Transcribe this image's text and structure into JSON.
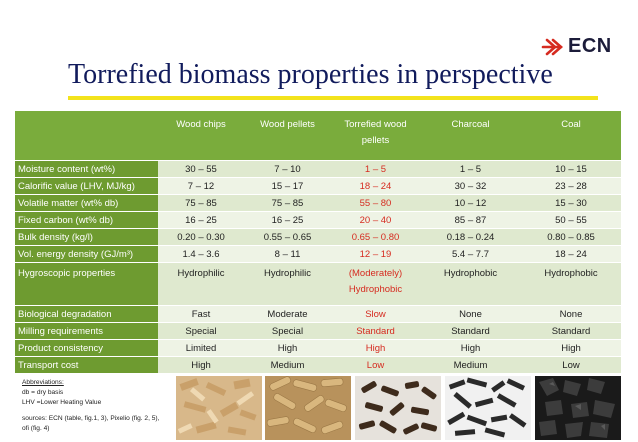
{
  "brand": {
    "name": "ECN",
    "color": "#1c1c3a",
    "accent": "#d62b20"
  },
  "title": "Torrefied biomass properties in perspective",
  "table": {
    "columns": [
      "Wood chips",
      "Wood pellets",
      "Torrefied wood pellets",
      "Charcoal",
      "Coal"
    ],
    "highlight_column": 2,
    "rows": [
      {
        "label": "Moisture content (wt%)",
        "values": [
          "30 – 55",
          "7 – 10",
          "1 – 5",
          "1 – 5",
          "10 – 15"
        ]
      },
      {
        "label": "Calorific value (LHV, MJ/kg)",
        "values": [
          "7 – 12",
          "15 – 17",
          "18 – 24",
          "30 – 32",
          "23 – 28"
        ]
      },
      {
        "label": "Volatile matter (wt% db)",
        "values": [
          "75 – 85",
          "75 – 85",
          "55 – 80",
          "10 – 12",
          "15 – 30"
        ]
      },
      {
        "label": "Fixed carbon (wt% db)",
        "values": [
          "16 – 25",
          "16 – 25",
          "20 – 40",
          "85 – 87",
          "50 – 55"
        ]
      },
      {
        "label": "Bulk density (kg/l)",
        "values": [
          "0.20 – 0.30",
          "0.55 – 0.65",
          "0.65 – 0.80",
          "0.18 – 0.24",
          "0.80 – 0.85"
        ]
      },
      {
        "label": "Vol. energy density (GJ/m³)",
        "values": [
          "1.4 – 3.6",
          "8 – 11",
          "12 – 19",
          "5.4 – 7.7",
          "18 – 24"
        ]
      },
      {
        "label": "Hygroscopic properties",
        "values": [
          "Hydrophilic",
          "Hydrophilic",
          "(Moderately) Hydrophobic",
          "Hydrophobic",
          "Hydrophobic"
        ]
      },
      {
        "label": "Biological degradation",
        "values": [
          "Fast",
          "Moderate",
          "Slow",
          "None",
          "None"
        ]
      },
      {
        "label": "Milling requirements",
        "values": [
          "Special",
          "Special",
          "Standard",
          "Standard",
          "Standard"
        ]
      },
      {
        "label": "Product consistency",
        "values": [
          "Limited",
          "High",
          "High",
          "High",
          "High"
        ]
      },
      {
        "label": "Transport cost",
        "values": [
          "High",
          "Medium",
          "Low",
          "Medium",
          "Low"
        ]
      }
    ]
  },
  "notes": {
    "heading": "Abbreviations:",
    "line1": "db = dry basis",
    "line2": "LHV =Lower Heating Value",
    "sources": "sources: ECN (table, fig.1, 3), Pixelio (fig. 2, 5), ofi (fig. 4)"
  }
}
